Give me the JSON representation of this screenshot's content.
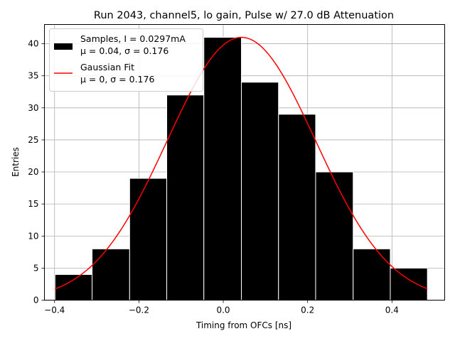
{
  "chart_data": {
    "type": "bar",
    "title": "Run 2043, channel5, lo gain, Pulse w/ 27.0 dB Attenuation",
    "xlabel": "Timing from OFCs [ns]",
    "ylabel": "Entries",
    "xlim": [
      -0.424,
      0.525
    ],
    "ylim": [
      0,
      43
    ],
    "xticks": [
      -0.4,
      -0.2,
      0.0,
      0.2,
      0.4
    ],
    "xtick_labels": [
      "−0.4",
      "−0.2",
      "0.0",
      "0.2",
      "0.4"
    ],
    "yticks": [
      0,
      5,
      10,
      15,
      20,
      25,
      30,
      35,
      40
    ],
    "ytick_labels": [
      "0",
      "5",
      "10",
      "15",
      "20",
      "25",
      "30",
      "35",
      "40"
    ],
    "grid": true,
    "histogram": {
      "bin_edges": [
        -0.399,
        -0.311,
        -0.222,
        -0.134,
        -0.046,
        0.043,
        0.131,
        0.219,
        0.308,
        0.396,
        0.484
      ],
      "counts": [
        4,
        8,
        19,
        32,
        41,
        34,
        29,
        20,
        8,
        5
      ],
      "color": "#000000",
      "edgecolor": "#ffffff"
    },
    "fit": {
      "type": "gaussian",
      "amplitude": 41,
      "mean": 0.043,
      "sigma": 0.176,
      "x_range": [
        -0.399,
        0.484
      ],
      "color": "#ff0000"
    },
    "legend": {
      "placement": "top-left",
      "entries": [
        {
          "name": "samples",
          "line1": "Samples, I = 0.0297mA",
          "line2": "μ = 0.04, σ = 0.176"
        },
        {
          "name": "gaussian-fit",
          "line1": "Gaussian Fit",
          "line2": "μ = 0, σ = 0.176"
        }
      ]
    }
  }
}
